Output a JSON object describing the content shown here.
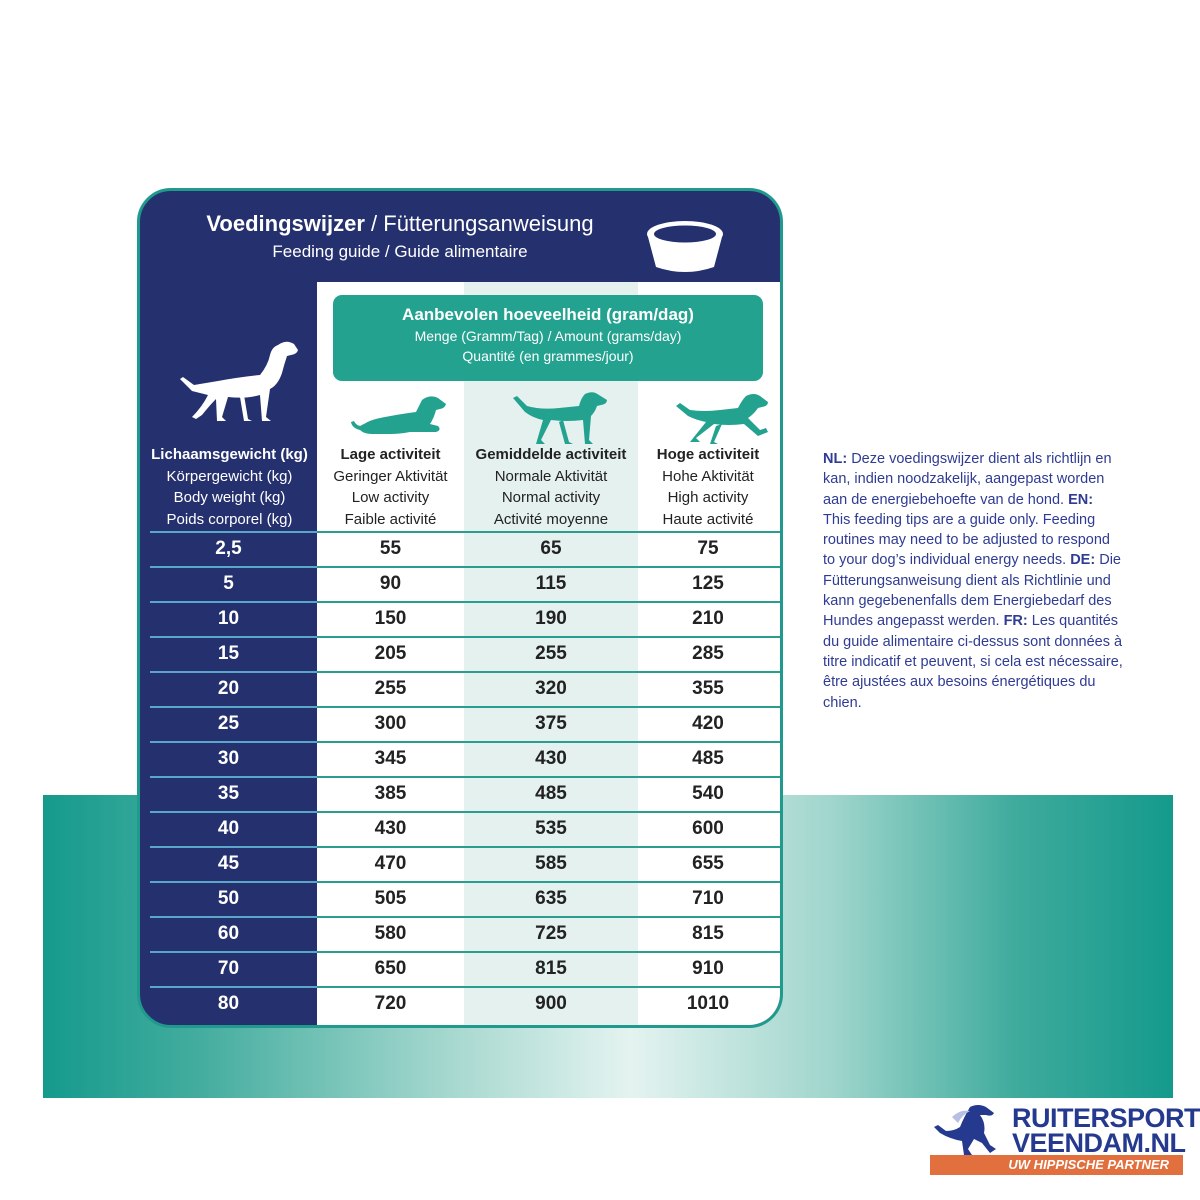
{
  "header": {
    "title_main": "Voedingswijzer",
    "title_sep": " / ",
    "title_de": "Fütterungsanweisung",
    "subtitle": "Feeding guide / Guide alimentaire",
    "bowl_icon": "bowl-icon"
  },
  "amount_box": {
    "title": "Aanbevolen hoeveelheid (gram/dag)",
    "line2": "Menge (Gramm/Tag) / Amount (grams/day)",
    "line3": "Quantité (en grammes/jour)"
  },
  "weight_header": [
    "Lichaamsgewicht (kg)",
    "Körpergewicht (kg)",
    "Body weight (kg)",
    "Poids corporel (kg)"
  ],
  "columns": [
    {
      "lines": [
        "Lage activiteit",
        "Geringer Aktivität",
        "Low activity",
        "Faible activité"
      ],
      "icon": "lying-dog-icon"
    },
    {
      "lines": [
        "Gemiddelde activiteit",
        "Normale Aktivität",
        "Normal activity",
        "Activité moyenne"
      ],
      "icon": "walking-dog-icon"
    },
    {
      "lines": [
        "Hoge activiteit",
        "Hohe Aktivität",
        "High activity",
        "Haute activité"
      ],
      "icon": "running-dog-icon"
    }
  ],
  "rows": [
    {
      "weight": "2,5",
      "low": "55",
      "normal": "65",
      "high": "75"
    },
    {
      "weight": "5",
      "low": "90",
      "normal": "115",
      "high": "125"
    },
    {
      "weight": "10",
      "low": "150",
      "normal": "190",
      "high": "210"
    },
    {
      "weight": "15",
      "low": "205",
      "normal": "255",
      "high": "285"
    },
    {
      "weight": "20",
      "low": "255",
      "normal": "320",
      "high": "355"
    },
    {
      "weight": "25",
      "low": "300",
      "normal": "375",
      "high": "420"
    },
    {
      "weight": "30",
      "low": "345",
      "normal": "430",
      "high": "485"
    },
    {
      "weight": "35",
      "low": "385",
      "normal": "485",
      "high": "540"
    },
    {
      "weight": "40",
      "low": "430",
      "normal": "535",
      "high": "600"
    },
    {
      "weight": "45",
      "low": "470",
      "normal": "585",
      "high": "655"
    },
    {
      "weight": "50",
      "low": "505",
      "normal": "635",
      "high": "710"
    },
    {
      "weight": "60",
      "low": "580",
      "normal": "725",
      "high": "815"
    },
    {
      "weight": "70",
      "low": "650",
      "normal": "815",
      "high": "910"
    },
    {
      "weight": "80",
      "low": "720",
      "normal": "900",
      "high": "1010"
    }
  ],
  "note": {
    "nl_label": "NL:",
    "nl_text": " Deze voedingswijzer dient als richtlijn en kan, indien noodzakelijk, aangepast worden aan de energiebehoefte van de hond. ",
    "en_label": "EN:",
    "en_text": " This feeding tips are a guide only. Feeding routines may need to be adjusted to respond to your dog’s individual energy needs. ",
    "de_label": "DE:",
    "de_text": " Die Fütterungsanweisung dient als Richtlinie und kann gegebenenfalls dem Energiebedarf des Hundes angepasst werden. ",
    "fr_label": "FR:",
    "fr_text": " Les quantités du guide alimentaire ci-dessus sont données à titre indicatif et peuvent, si cela est nécessaire, être ajustées aux besoins énergétiques du chien."
  },
  "logo": {
    "line1": "RUITERSPORT",
    "line2": "VEENDAM.NL",
    "tagline": "UW HIPPISCHE PARTNER"
  },
  "colors": {
    "navy": "#25306e",
    "teal": "#24a290",
    "note_blue": "#2f3b94",
    "logo_orange": "#e2703f"
  }
}
